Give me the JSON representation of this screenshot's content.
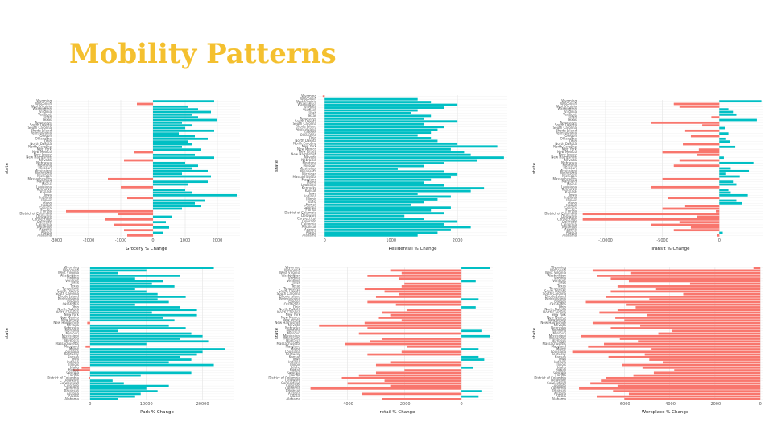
{
  "title": "Mobility Patterns",
  "chart_data": [
    {
      "type": "hbar",
      "x_label": "Grocery % Change",
      "y_label": "state",
      "grid": true,
      "positive_color": "#00BFC4",
      "negative_color": "#F8766D",
      "categories": [
        "Alabama",
        "Alaska",
        "Arizona",
        "Arkansas",
        "California",
        "Colorado",
        "Connecticut",
        "Delaware",
        "District of Columbia",
        "Florida",
        "Georgia",
        "Hawaii",
        "Idaho",
        "Illinois",
        "Indiana",
        "Iowa",
        "Kansas",
        "Kentucky",
        "Louisiana",
        "Maine",
        "Maryland",
        "Massachusetts",
        "Michigan",
        "Minnesota",
        "Mississippi",
        "Missouri",
        "Montana",
        "Nebraska",
        "Nevada",
        "New Hampshire",
        "New Jersey",
        "New Mexico",
        "New York",
        "North Carolina",
        "North Dakota",
        "Ohio",
        "Oklahoma",
        "Oregon",
        "Pennsylvania",
        "Rhode Island",
        "South Carolina",
        "South Dakota",
        "Tennessee",
        "Texas",
        "Utah",
        "Vermont",
        "Virginia",
        "Washington",
        "West Virginia",
        "Wisconsin",
        "Wyoming"
      ],
      "values": [
        -800,
        300,
        -900,
        500,
        -1200,
        400,
        -1500,
        600,
        -1100,
        -2700,
        900,
        1500,
        1300,
        1600,
        -800,
        2600,
        1200,
        1000,
        -1000,
        1100,
        1700,
        -1400,
        1800,
        900,
        1700,
        1200,
        1400,
        1000,
        -900,
        1900,
        1300,
        -600,
        1500,
        900,
        1200,
        1100,
        1700,
        1300,
        800,
        1900,
        1000,
        1200,
        900,
        2000,
        1400,
        1200,
        1800,
        1400,
        1100,
        -500,
        1900
      ],
      "xlim": [
        -3100,
        2700
      ],
      "xticks": [
        -3000,
        -2000,
        -1000,
        0,
        1000,
        2000
      ]
    },
    {
      "type": "hbar",
      "x_label": "Residential % Change",
      "y_label": "state",
      "grid": true,
      "positive_color": "#00BFC4",
      "negative_color": "#F8766D",
      "categories": [
        "Alabama",
        "Alaska",
        "Arizona",
        "Arkansas",
        "California",
        "Colorado",
        "Connecticut",
        "Delaware",
        "District of Columbia",
        "Florida",
        "Georgia",
        "Hawaii",
        "Idaho",
        "Illinois",
        "Indiana",
        "Iowa",
        "Kansas",
        "Kentucky",
        "Louisiana",
        "Maine",
        "Maryland",
        "Massachusetts",
        "Michigan",
        "Minnesota",
        "Mississippi",
        "Missouri",
        "Montana",
        "Nebraska",
        "Nevada",
        "New Hampshire",
        "New Jersey",
        "New Mexico",
        "New York",
        "North Carolina",
        "North Dakota",
        "Ohio",
        "Oklahoma",
        "Oregon",
        "Pennsylvania",
        "Rhode Island",
        "South Carolina",
        "South Dakota",
        "Tennessee",
        "Texas",
        "Utah",
        "Vermont",
        "Virginia",
        "Washington",
        "West Virginia",
        "Wisconsin",
        "Wyoming"
      ],
      "values": [
        1400,
        1700,
        1900,
        2200,
        1800,
        2000,
        1500,
        1200,
        1800,
        1600,
        1900,
        1300,
        1500,
        1700,
        1900,
        1400,
        2200,
        2400,
        1800,
        1500,
        1600,
        1900,
        2000,
        1800,
        1100,
        1500,
        1800,
        2300,
        2700,
        2200,
        2100,
        1900,
        2600,
        2000,
        1700,
        1600,
        1400,
        1600,
        1700,
        1800,
        1500,
        2000,
        1500,
        1600,
        1300,
        1400,
        1800,
        2000,
        1600,
        1400,
        -30
      ],
      "xlim": [
        -100,
        2750
      ],
      "xticks": [
        0,
        1000,
        2000
      ]
    },
    {
      "type": "hbar",
      "x_label": "Transit % Change",
      "y_label": "state",
      "grid": true,
      "positive_color": "#00BFC4",
      "negative_color": "#F8766D",
      "categories": [
        "Alabama",
        "Alaska",
        "Arizona",
        "Arkansas",
        "California",
        "Colorado",
        "Connecticut",
        "Delaware",
        "District of Columbia",
        "Florida",
        "Georgia",
        "Hawaii",
        "Idaho",
        "Illinois",
        "Indiana",
        "Iowa",
        "Kansas",
        "Kentucky",
        "Louisiana",
        "Maine",
        "Maryland",
        "Massachusetts",
        "Michigan",
        "Minnesota",
        "Mississippi",
        "Missouri",
        "Montana",
        "Nebraska",
        "Nevada",
        "New Hampshire",
        "New Jersey",
        "New Mexico",
        "New York",
        "North Carolina",
        "North Dakota",
        "Ohio",
        "Oklahoma",
        "Oregon",
        "Pennsylvania",
        "Rhode Island",
        "South Carolina",
        "South Dakota",
        "Tennessee",
        "Texas",
        "Utah",
        "Vermont",
        "Virginia",
        "Washington",
        "West Virginia",
        "Wisconsin",
        "Wyoming"
      ],
      "values": [
        -200,
        300,
        -4000,
        -2500,
        -6000,
        -3500,
        -12000,
        -2000,
        -12000,
        -300,
        -5000,
        -3000,
        2000,
        1500,
        -4500,
        2500,
        1000,
        800,
        -6000,
        1500,
        1200,
        -5000,
        1800,
        600,
        2600,
        1000,
        -4000,
        3000,
        -3500,
        400,
        -2000,
        -5000,
        -1800,
        1400,
        -3200,
        900,
        600,
        -2500,
        800,
        -3000,
        500,
        -1500,
        -6000,
        3300,
        -700,
        1500,
        1200,
        800,
        -3500,
        -4000,
        3700
      ],
      "xlim": [
        -12400,
        3800
      ],
      "xticks": [
        -10000,
        -5000,
        0
      ]
    },
    {
      "type": "hbar",
      "x_label": "Park % Change",
      "y_label": "state",
      "grid": true,
      "positive_color": "#00BFC4",
      "negative_color": "#F8766D",
      "categories": [
        "Alabama",
        "Alaska",
        "Arizona",
        "Arkansas",
        "California",
        "Colorado",
        "Connecticut",
        "Delaware",
        "District of Columbia",
        "Florida",
        "Georgia",
        "Hawaii",
        "Idaho",
        "Illinois",
        "Indiana",
        "Iowa",
        "Kansas",
        "Kentucky",
        "Louisiana",
        "Maine",
        "Maryland",
        "Massachusetts",
        "Michigan",
        "Minnesota",
        "Mississippi",
        "Missouri",
        "Montana",
        "Nebraska",
        "Nevada",
        "New Hampshire",
        "New Jersey",
        "New Mexico",
        "New York",
        "North Carolina",
        "North Dakota",
        "Ohio",
        "Oklahoma",
        "Oregon",
        "Pennsylvania",
        "Rhode Island",
        "South Carolina",
        "South Dakota",
        "Tennessee",
        "Texas",
        "Utah",
        "Vermont",
        "Virginia",
        "Washington",
        "West Virginia",
        "Wisconsin",
        "Wyoming"
      ],
      "values": [
        5000,
        8000,
        9000,
        12000,
        10000,
        14000,
        6000,
        4000,
        -200,
        9000,
        18000,
        -3000,
        -1500,
        22000,
        14000,
        18000,
        16000,
        19000,
        20000,
        24000,
        -800,
        10000,
        21000,
        16000,
        20000,
        18000,
        5000,
        17000,
        14000,
        -500,
        15000,
        13000,
        19000,
        11000,
        19000,
        16000,
        8000,
        14000,
        12000,
        17000,
        12000,
        10000,
        8000,
        15000,
        11000,
        13000,
        8000,
        16000,
        5000,
        10000,
        22000
      ],
      "xlim": [
        -1700,
        25500
      ],
      "xticks": [
        0,
        10000,
        20000
      ]
    },
    {
      "type": "hbar",
      "x_label": "retail % Change",
      "y_label": "state",
      "grid": true,
      "positive_color": "#00BFC4",
      "negative_color": "#F8766D",
      "categories": [
        "Alabama",
        "Alaska",
        "Arizona",
        "Arkansas",
        "California",
        "Colorado",
        "Connecticut",
        "Delaware",
        "District of Columbia",
        "Florida",
        "Georgia",
        "Hawaii",
        "Idaho",
        "Illinois",
        "Indiana",
        "Iowa",
        "Kansas",
        "Kentucky",
        "Louisiana",
        "Maine",
        "Maryland",
        "Massachusetts",
        "Michigan",
        "Minnesota",
        "Mississippi",
        "Missouri",
        "Montana",
        "Nebraska",
        "Nevada",
        "New Hampshire",
        "New Jersey",
        "New Mexico",
        "New York",
        "North Carolina",
        "North Dakota",
        "Ohio",
        "Oklahoma",
        "Oregon",
        "Pennsylvania",
        "Rhode Island",
        "South Carolina",
        "South Dakota",
        "Tennessee",
        "Texas",
        "Utah",
        "Vermont",
        "Virginia",
        "Washington",
        "West Virginia",
        "Wisconsin",
        "Wyoming"
      ],
      "values": [
        -2800,
        600,
        -3500,
        700,
        -5300,
        -2500,
        -4000,
        -2700,
        -4200,
        -3600,
        -3000,
        -2000,
        400,
        -3000,
        -2500,
        800,
        600,
        -3300,
        -2100,
        600,
        -1900,
        -4100,
        -3200,
        -2800,
        1000,
        -3600,
        700,
        -3300,
        -5000,
        -3400,
        -2100,
        -2900,
        -2500,
        -2800,
        -1900,
        500,
        -2300,
        -3300,
        600,
        -3000,
        -2200,
        -2700,
        -3400,
        -2100,
        -2000,
        500,
        -2200,
        -3300,
        -2100,
        -2500,
        1000
      ],
      "xlim": [
        -5600,
        1100
      ],
      "xticks": [
        -4000,
        -2000,
        0
      ]
    },
    {
      "type": "hbar",
      "x_label": "Workplace % Change",
      "y_label": "state",
      "grid": true,
      "positive_color": "#00BFC4",
      "negative_color": "#F8766D",
      "categories": [
        "Alabama",
        "Alaska",
        "Arizona",
        "Arkansas",
        "California",
        "Colorado",
        "Connecticut",
        "Delaware",
        "District of Columbia",
        "Florida",
        "Georgia",
        "Hawaii",
        "Idaho",
        "Illinois",
        "Indiana",
        "Iowa",
        "Kansas",
        "Kentucky",
        "Louisiana",
        "Maine",
        "Maryland",
        "Massachusetts",
        "Michigan",
        "Minnesota",
        "Mississippi",
        "Missouri",
        "Montana",
        "Nebraska",
        "Nevada",
        "New Hampshire",
        "New Jersey",
        "New Mexico",
        "New York",
        "North Carolina",
        "North Dakota",
        "Ohio",
        "Oklahoma",
        "Oregon",
        "Pennsylvania",
        "Rhode Island",
        "South Carolina",
        "South Dakota",
        "Tennessee",
        "Texas",
        "Utah",
        "Vermont",
        "Virginia",
        "Washington",
        "West Virginia",
        "Wisconsin",
        "Wyoming"
      ],
      "values": [
        -6000,
        -7200,
        -5800,
        -6500,
        -8000,
        -6300,
        -7500,
        -7000,
        -6800,
        -5600,
        -4700,
        -3800,
        -5200,
        -6100,
        -4300,
        -4900,
        -6700,
        -5100,
        -8300,
        -4800,
        -7600,
        -6900,
        -5400,
        -6200,
        -7900,
        -4500,
        -3900,
        -6600,
        -5300,
        -7400,
        -6000,
        -6400,
        -5000,
        -7100,
        -6300,
        -5500,
        -5900,
        -7700,
        -4900,
        -6800,
        -3400,
        -6600,
        -4600,
        -6300,
        -3100,
        -5800,
        -6600,
        -7200,
        -5700,
        -7400,
        -300
      ],
      "xlim": [
        -8500,
        100
      ],
      "xticks": [
        -6000,
        -4000,
        -2000,
        0
      ]
    }
  ]
}
